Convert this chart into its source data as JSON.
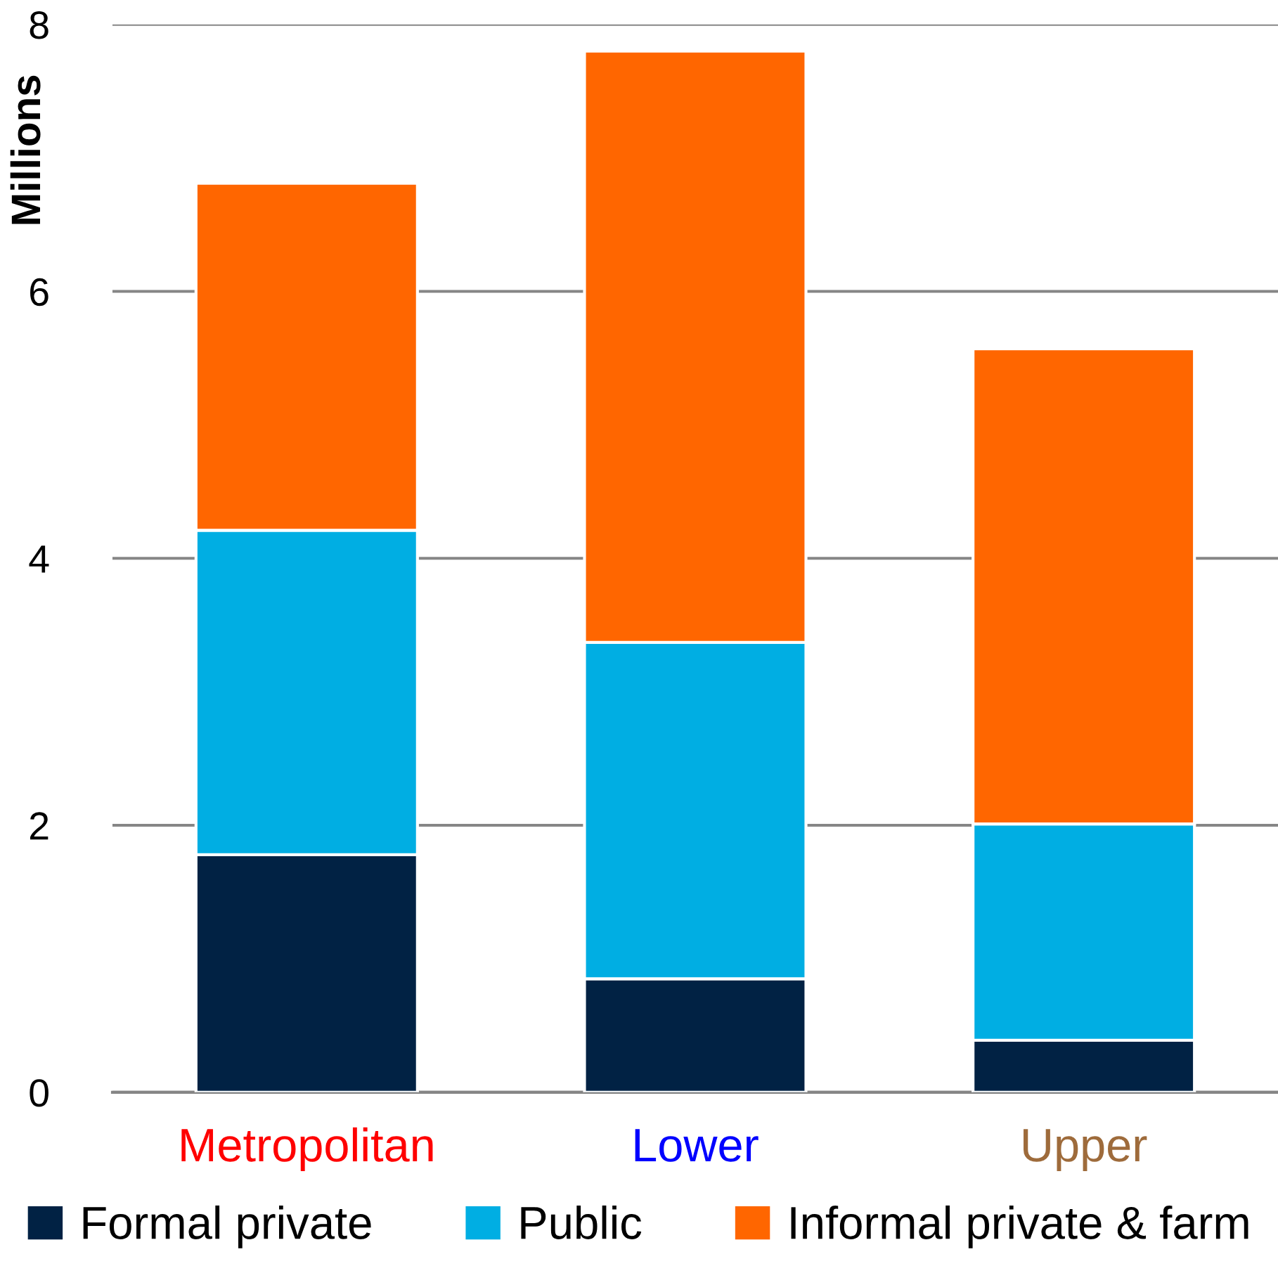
{
  "chart_data": {
    "type": "bar",
    "stacked": true,
    "ylabel": "Millions",
    "categories": [
      "Metropolitan",
      "Lower",
      "Upper"
    ],
    "series": [
      {
        "name": "Formal private",
        "color": "#012244",
        "values": [
          1.78,
          0.85,
          0.39
        ]
      },
      {
        "name": "Public",
        "color": "#00aee3",
        "values": [
          2.43,
          2.52,
          1.62
        ]
      },
      {
        "name": "Informal private & farm",
        "color": "#ff6600",
        "values": [
          2.6,
          4.43,
          3.56
        ]
      }
    ],
    "ylim": [
      0,
      8
    ],
    "yticks": [
      0,
      2,
      4,
      6,
      8
    ],
    "grid": "y",
    "legend": "bottom"
  }
}
